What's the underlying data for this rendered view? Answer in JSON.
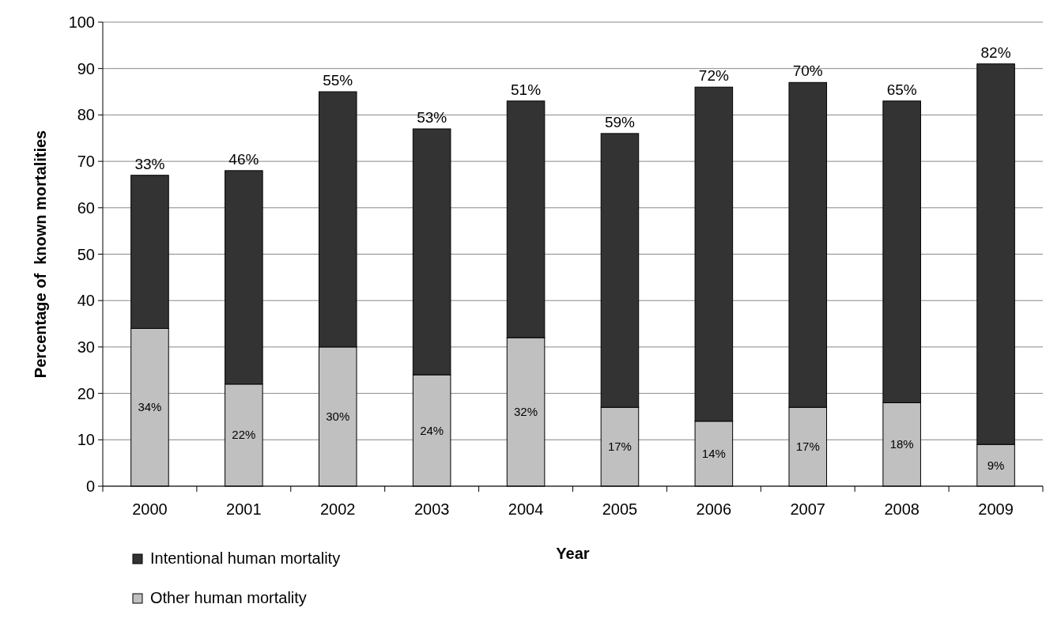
{
  "chart_data": {
    "type": "bar",
    "stacked": true,
    "xlabel": "Year",
    "ylabel": "Percentage of  known mortalities",
    "categories": [
      "2000",
      "2001",
      "2002",
      "2003",
      "2004",
      "2005",
      "2006",
      "2007",
      "2008",
      "2009"
    ],
    "series": [
      {
        "name": "Other human mortality",
        "color": "#c0c0c0",
        "values": [
          34,
          22,
          30,
          24,
          32,
          17,
          14,
          17,
          18,
          9
        ],
        "value_labels": [
          "34%",
          "22%",
          "30%",
          "24%",
          "32%",
          "17%",
          "14%",
          "17%",
          "18%",
          "9%"
        ]
      },
      {
        "name": "Intentional human mortality",
        "color": "#333333",
        "values": [
          33,
          46,
          55,
          53,
          51,
          59,
          72,
          70,
          65,
          82
        ],
        "value_labels": [
          "33%",
          "46%",
          "55%",
          "53%",
          "51%",
          "59%",
          "72%",
          "70%",
          "65%",
          "82%"
        ]
      }
    ],
    "ylim": [
      0,
      100
    ],
    "yticks": [
      0,
      10,
      20,
      30,
      40,
      50,
      60,
      70,
      80,
      90,
      100
    ],
    "grid": "y",
    "legend": "bottom left"
  }
}
